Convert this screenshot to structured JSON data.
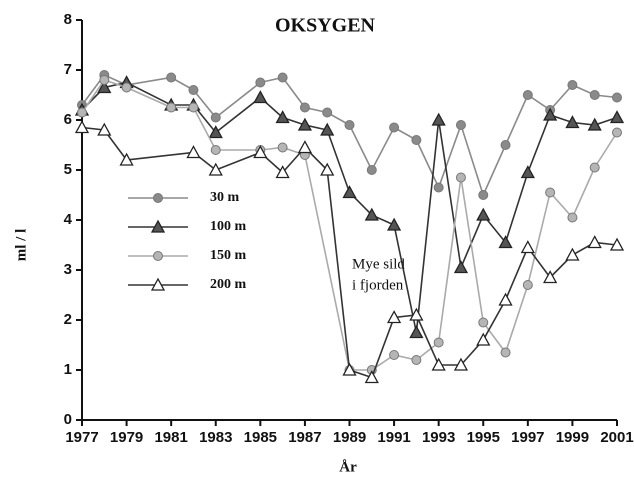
{
  "chart_data": {
    "type": "line",
    "title": "OKSYGEN",
    "x_label": "År",
    "y_label": "ml / l",
    "annotation": [
      "Mye sild",
      "i fjorden"
    ],
    "xlim": [
      1977,
      2001
    ],
    "xticks": [
      1977,
      1979,
      1981,
      1983,
      1985,
      1987,
      1989,
      1991,
      1993,
      1995,
      1997,
      1999,
      2001
    ],
    "ylim": [
      0,
      8
    ],
    "yticks": [
      0,
      1,
      2,
      3,
      4,
      5,
      6,
      7,
      8
    ],
    "legend": "left",
    "series": [
      {
        "name": "30 m",
        "color": "#8a8a8a",
        "marker": "circle",
        "marker_fill": "#8a8a8a",
        "x": [
          1977,
          1978,
          1979,
          1981,
          1982,
          1983,
          1985,
          1986,
          1987,
          1988,
          1989,
          1990,
          1991,
          1992,
          1993,
          1994,
          1995,
          1996,
          1997,
          1998,
          1999,
          2000,
          2001
        ],
        "values": [
          6.3,
          6.9,
          6.7,
          6.85,
          6.6,
          6.05,
          6.75,
          6.85,
          6.25,
          6.15,
          5.9,
          5.0,
          5.85,
          5.6,
          4.65,
          5.9,
          4.5,
          5.5,
          6.5,
          6.2,
          6.7,
          6.5,
          6.45
        ]
      },
      {
        "name": "100 m",
        "color": "#333333",
        "marker": "triangle",
        "marker_fill": "#555555",
        "x": [
          1977,
          1978,
          1979,
          1981,
          1982,
          1983,
          1985,
          1986,
          1987,
          1988,
          1989,
          1990,
          1991,
          1992,
          1993,
          1994,
          1995,
          1996,
          1997,
          1998,
          1999,
          2000,
          2001
        ],
        "values": [
          6.2,
          6.65,
          6.75,
          6.3,
          6.3,
          5.75,
          6.45,
          6.05,
          5.9,
          5.8,
          4.55,
          4.1,
          3.9,
          1.75,
          6.0,
          3.05,
          4.1,
          3.55,
          4.95,
          6.1,
          5.95,
          5.9,
          6.05
        ]
      },
      {
        "name": "150 m",
        "color": "#aaaaaa",
        "marker": "circle",
        "marker_fill": "#b5b5b5",
        "x": [
          1977,
          1978,
          1979,
          1981,
          1982,
          1983,
          1985,
          1986,
          1987,
          1989,
          1990,
          1991,
          1992,
          1993,
          1994,
          1995,
          1996,
          1997,
          1998,
          1999,
          2000,
          2001
        ],
        "values": [
          6.15,
          6.8,
          6.65,
          6.25,
          6.25,
          5.4,
          5.4,
          5.45,
          5.3,
          1.0,
          1.0,
          1.3,
          1.2,
          1.55,
          4.85,
          1.95,
          1.35,
          2.7,
          4.55,
          4.05,
          5.05,
          5.75
        ]
      },
      {
        "name": "200 m",
        "color": "#333333",
        "marker": "triangle",
        "marker_fill": "#ffffff",
        "x": [
          1977,
          1978,
          1979,
          1982,
          1983,
          1985,
          1986,
          1987,
          1988,
          1989,
          1990,
          1991,
          1992,
          1993,
          1994,
          1995,
          1996,
          1997,
          1998,
          1999,
          2000,
          2001
        ],
        "values": [
          5.85,
          5.8,
          5.2,
          5.35,
          5.0,
          5.35,
          4.95,
          5.45,
          5.0,
          1.0,
          0.85,
          2.05,
          2.1,
          1.1,
          1.1,
          1.6,
          2.4,
          3.45,
          2.85,
          3.3,
          3.55,
          3.5
        ]
      }
    ]
  }
}
